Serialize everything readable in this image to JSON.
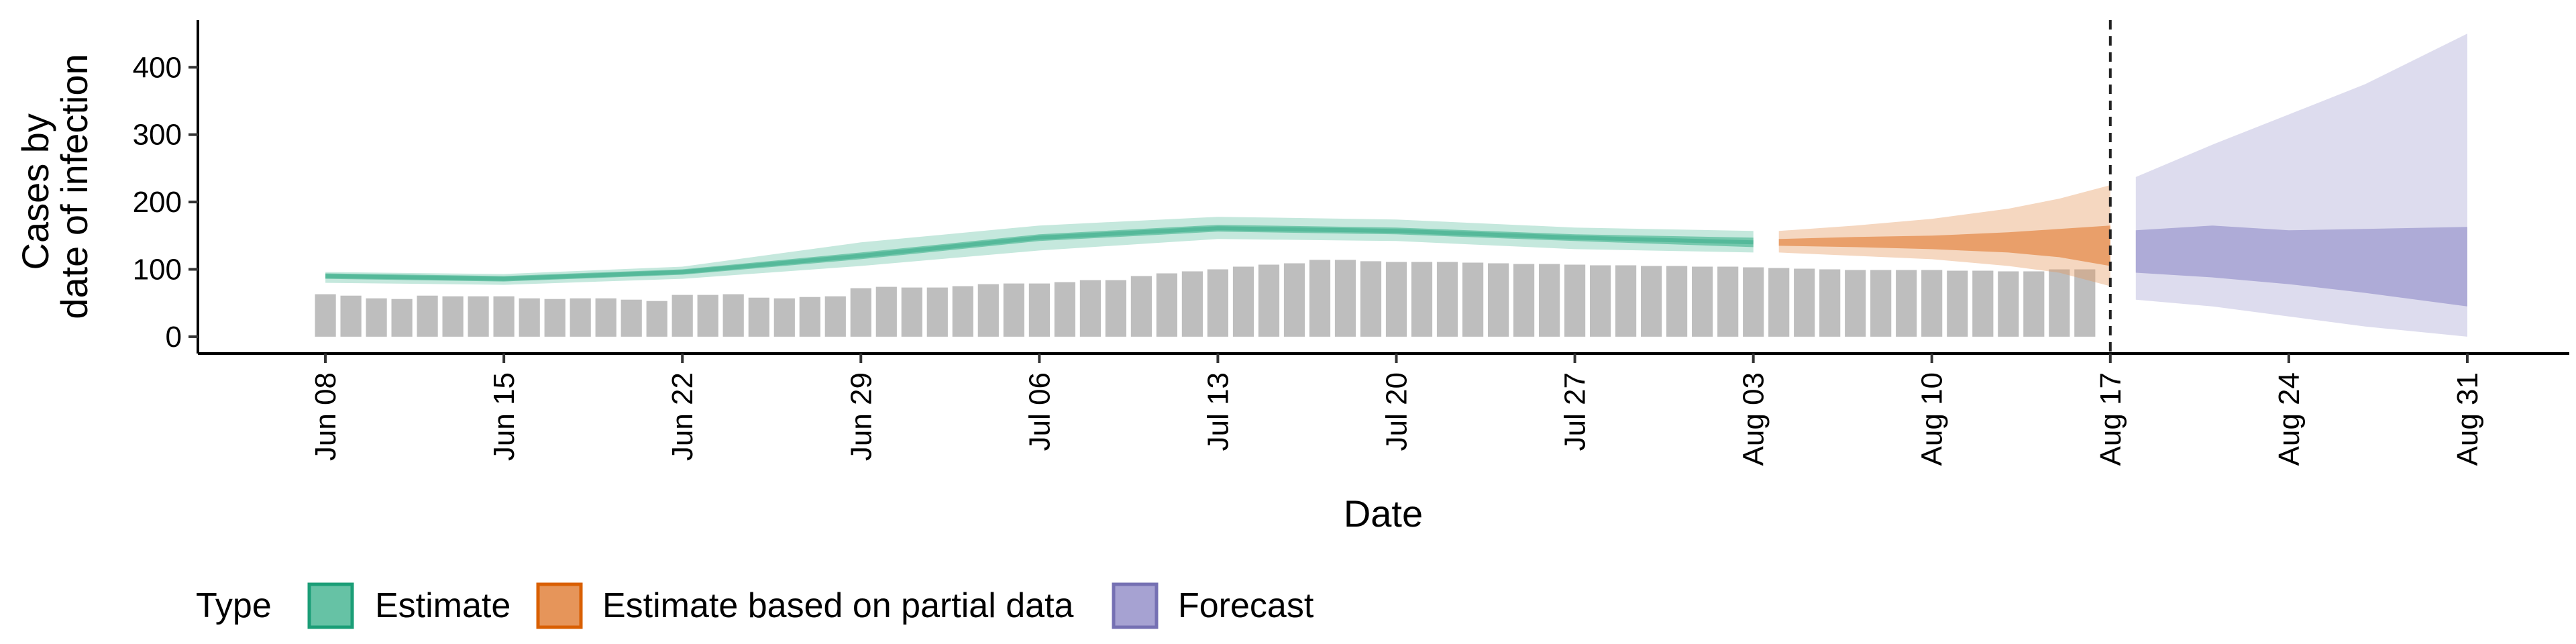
{
  "chart_data": {
    "type": "bar",
    "title": "",
    "xlabel": "Date",
    "ylabel_lines": [
      "Cases by",
      "date of infection"
    ],
    "ylim": [
      -25,
      470
    ],
    "yticks": [
      0,
      100,
      200,
      300,
      400
    ],
    "xlim": [
      "2020-06-03",
      "2020-09-04"
    ],
    "xticks": [
      {
        "date": "2020-06-08",
        "label": "Jun 08"
      },
      {
        "date": "2020-06-15",
        "label": "Jun 15"
      },
      {
        "date": "2020-06-22",
        "label": "Jun 22"
      },
      {
        "date": "2020-06-29",
        "label": "Jun 29"
      },
      {
        "date": "2020-07-06",
        "label": "Jul 06"
      },
      {
        "date": "2020-07-13",
        "label": "Jul 13"
      },
      {
        "date": "2020-07-20",
        "label": "Jul 20"
      },
      {
        "date": "2020-07-27",
        "label": "Jul 27"
      },
      {
        "date": "2020-08-03",
        "label": "Aug 03"
      },
      {
        "date": "2020-08-10",
        "label": "Aug 10"
      },
      {
        "date": "2020-08-17",
        "label": "Aug 17"
      },
      {
        "date": "2020-08-24",
        "label": "Aug 24"
      },
      {
        "date": "2020-08-31",
        "label": "Aug 31"
      }
    ],
    "vline_date": "2020-08-17",
    "bars": {
      "start_date": "2020-06-08",
      "color": "#bebebe",
      "values": [
        63,
        61,
        57,
        56,
        61,
        60,
        60,
        60,
        57,
        56,
        57,
        57,
        55,
        53,
        62,
        62,
        63,
        58,
        57,
        59,
        60,
        72,
        74,
        73,
        73,
        75,
        78,
        79,
        79,
        81,
        84,
        84,
        90,
        94,
        97,
        100,
        104,
        107,
        109,
        114,
        114,
        112,
        111,
        111,
        111,
        110,
        109,
        108,
        108,
        107,
        106,
        106,
        105,
        105,
        104,
        104,
        103,
        102,
        101,
        100,
        99,
        99,
        99,
        99,
        98,
        98,
        97,
        97,
        100,
        100
      ]
    },
    "series": [
      {
        "name": "Estimate",
        "color": "#1b9e77",
        "fill": "#66c2a5",
        "dates": [
          "2020-06-08",
          "2020-06-15",
          "2020-06-22",
          "2020-06-29",
          "2020-07-06",
          "2020-07-13",
          "2020-07-20",
          "2020-07-27",
          "2020-08-03"
        ],
        "median": [
          90,
          86,
          96,
          120,
          147,
          161,
          157,
          147,
          140
        ],
        "inner_lo": [
          86,
          82,
          92,
          115,
          142,
          156,
          152,
          142,
          133
        ],
        "inner_hi": [
          94,
          90,
          100,
          125,
          152,
          166,
          162,
          152,
          147
        ],
        "outer_lo": [
          80,
          77,
          86,
          105,
          128,
          145,
          142,
          130,
          125
        ],
        "outer_hi": [
          96,
          93,
          104,
          140,
          165,
          178,
          174,
          162,
          157
        ]
      },
      {
        "name": "Estimate based on partial data",
        "color": "#d95f02",
        "fill": "#e6955a",
        "dates": [
          "2020-08-04",
          "2020-08-07",
          "2020-08-10",
          "2020-08-13",
          "2020-08-15",
          "2020-08-17"
        ],
        "inner_lo": [
          135,
          133,
          130,
          125,
          118,
          105
        ],
        "inner_hi": [
          145,
          148,
          150,
          155,
          160,
          165
        ],
        "outer_lo": [
          125,
          120,
          115,
          105,
          95,
          75
        ],
        "outer_hi": [
          157,
          165,
          175,
          190,
          205,
          225
        ]
      },
      {
        "name": "Forecast",
        "color": "#7570b3",
        "fill": "#a6a2d2",
        "dates": [
          "2020-08-18",
          "2020-08-21",
          "2020-08-24",
          "2020-08-27",
          "2020-08-31"
        ],
        "inner_lo": [
          95,
          88,
          78,
          65,
          45
        ],
        "inner_hi": [
          158,
          165,
          158,
          160,
          163
        ],
        "outer_lo": [
          55,
          45,
          30,
          15,
          0
        ],
        "outer_hi": [
          237,
          285,
          330,
          375,
          450
        ]
      }
    ],
    "legend": {
      "title": "Type",
      "position": "bottom",
      "entries": [
        "Estimate",
        "Estimate based on partial data",
        "Forecast"
      ]
    },
    "grid": false
  }
}
